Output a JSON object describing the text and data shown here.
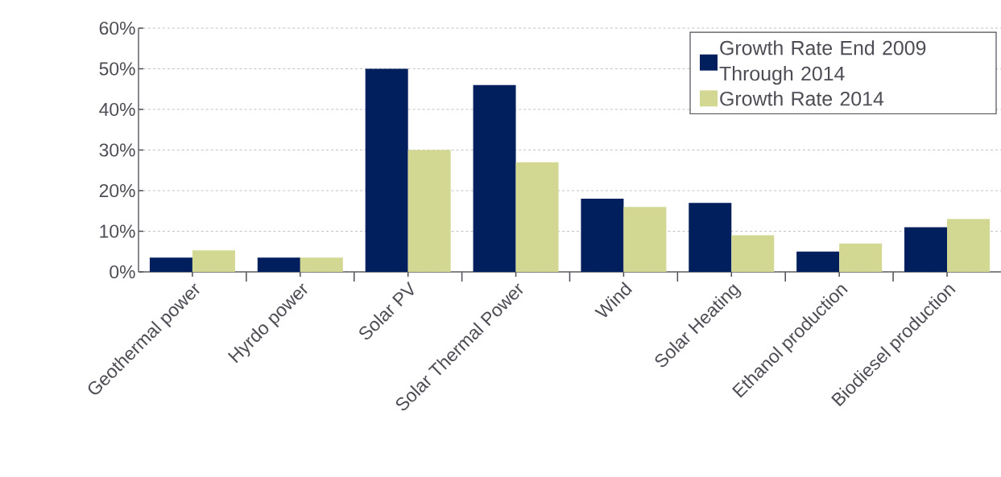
{
  "chart_data": {
    "type": "bar",
    "categories": [
      "Geothermal power",
      "Hyrdo power",
      "Solar PV",
      "Solar Thermal Power",
      "Wind",
      "Solar Heating",
      "Ethanol production",
      "Biodiesel production"
    ],
    "series": [
      {
        "name": "Growth Rate End 2009 Through 2014",
        "color": "#001f5c",
        "values": [
          3.5,
          3.5,
          50,
          46,
          18,
          17,
          5,
          11
        ]
      },
      {
        "name": "Growth Rate 2014",
        "color": "#d2d792",
        "values": [
          5.3,
          3.5,
          30,
          27,
          16,
          9,
          7,
          13
        ]
      }
    ],
    "ylim": [
      0,
      60
    ],
    "yticks": [
      {
        "value": 0,
        "label": "0%"
      },
      {
        "value": 10,
        "label": "10%"
      },
      {
        "value": 20,
        "label": "20%"
      },
      {
        "value": 30,
        "label": "30%"
      },
      {
        "value": 40,
        "label": "40%"
      },
      {
        "value": 50,
        "label": "50%"
      },
      {
        "value": 60,
        "label": "60%"
      }
    ],
    "grid": "y",
    "legend": "top right"
  }
}
